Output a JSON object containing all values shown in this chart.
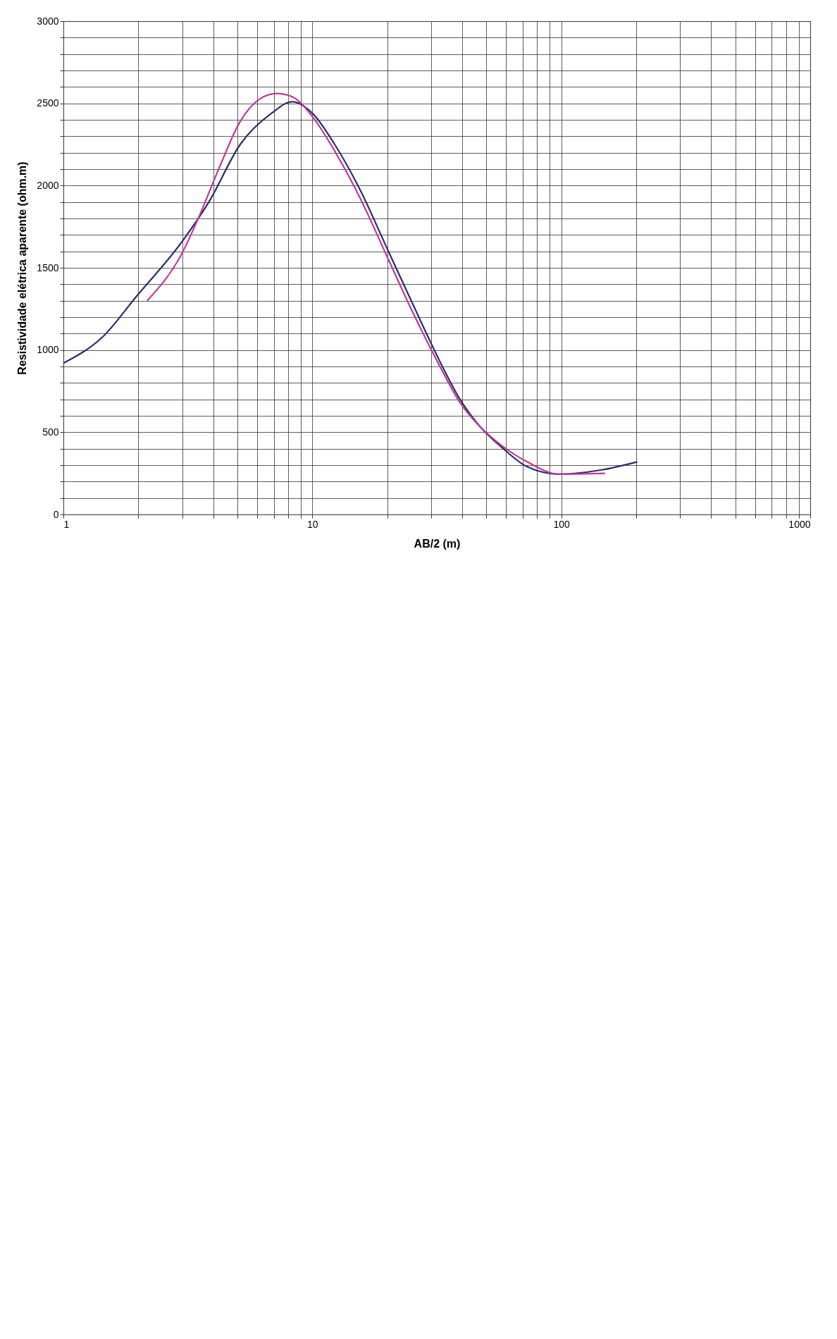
{
  "chart_data": {
    "type": "line",
    "xlabel": "AB/2 (m)",
    "ylabel": "Resistividade elétrica aparente (ohm.m)",
    "log": "x",
    "grid": true,
    "marker": "none",
    "line_style": "solid",
    "xlim": [
      1,
      1000
    ],
    "xticks": [
      1,
      {
        "value": 2,
        "label": null
      },
      {
        "value": 3,
        "label": null
      },
      {
        "value": 4,
        "label": null
      },
      {
        "value": 5,
        "label": null
      },
      {
        "value": 6,
        "label": null
      },
      {
        "value": 7,
        "label": null
      },
      {
        "value": 8,
        "label": null
      },
      {
        "value": 9,
        "label": null
      },
      10,
      {
        "value": 20,
        "label": null
      },
      {
        "value": 30,
        "label": null
      },
      {
        "value": 40,
        "label": null
      },
      {
        "value": 50,
        "label": null
      },
      {
        "value": 60,
        "label": null
      },
      {
        "value": 70,
        "label": null
      },
      {
        "value": 80,
        "label": null
      },
      {
        "value": 90,
        "label": null
      },
      100,
      {
        "value": 200,
        "label": null
      },
      {
        "value": 300,
        "label": null
      },
      {
        "value": 400,
        "label": null
      },
      {
        "value": 500,
        "label": null
      },
      {
        "value": 600,
        "label": null
      },
      {
        "value": 700,
        "label": null
      },
      {
        "value": 800,
        "label": null
      },
      {
        "value": 900,
        "label": null
      },
      1000
    ],
    "ylim": [
      0,
      3000
    ],
    "yticks": [
      0,
      {
        "value": 100,
        "label": null
      },
      {
        "value": 200,
        "label": null
      },
      {
        "value": 300,
        "label": null
      },
      {
        "value": 400,
        "label": null
      },
      500,
      {
        "value": 600,
        "label": null
      },
      {
        "value": 700,
        "label": null
      },
      {
        "value": 800,
        "label": null
      },
      {
        "value": 900,
        "label": null
      },
      1000,
      {
        "value": 1100,
        "label": null
      },
      {
        "value": 1200,
        "label": null
      },
      {
        "value": 1300,
        "label": null
      },
      {
        "value": 1400,
        "label": null
      },
      1500,
      {
        "value": 1600,
        "label": null
      },
      {
        "value": 1700,
        "label": null
      },
      {
        "value": 1800,
        "label": null
      },
      {
        "value": 1900,
        "label": null
      },
      2000,
      {
        "value": 2100,
        "label": null
      },
      {
        "value": 2200,
        "label": null
      },
      {
        "value": 2300,
        "label": null
      },
      {
        "value": 2400,
        "label": null
      },
      2500,
      {
        "value": 2600,
        "label": null
      },
      {
        "value": 2700,
        "label": null
      },
      {
        "value": 2800,
        "label": null
      },
      {
        "value": 2900,
        "label": null
      },
      3000
    ],
    "series": [
      {
        "color": "#2b2d6b",
        "x": [
          1,
          1.46,
          1.95,
          3.0,
          3.84,
          5.13,
          6.86,
          8.3,
          10,
          12.3,
          15.6,
          19.8,
          25.3,
          32.3,
          39.2,
          47.4,
          57.5,
          73,
          98,
          144,
          202
        ],
        "values": [
          920,
          1090,
          1320,
          1660,
          1900,
          2250,
          2440,
          2510,
          2440,
          2250,
          1970,
          1630,
          1280,
          940,
          700,
          530,
          410,
          290,
          245,
          270,
          320
        ]
      },
      {
        "color": "#c2369a",
        "x": [
          2.17,
          3.0,
          3.48,
          4.23,
          5.13,
          6.2,
          7.2,
          8.3,
          10,
          12.3,
          15.6,
          19.8,
          25.3,
          32.3,
          39.2,
          47.4,
          57.5,
          73,
          98,
          150
        ],
        "values": [
          1300,
          1590,
          1800,
          2110,
          2390,
          2530,
          2560,
          2540,
          2420,
          2210,
          1920,
          1580,
          1230,
          910,
          680,
          530,
          420,
          320,
          245,
          250
        ]
      }
    ]
  }
}
